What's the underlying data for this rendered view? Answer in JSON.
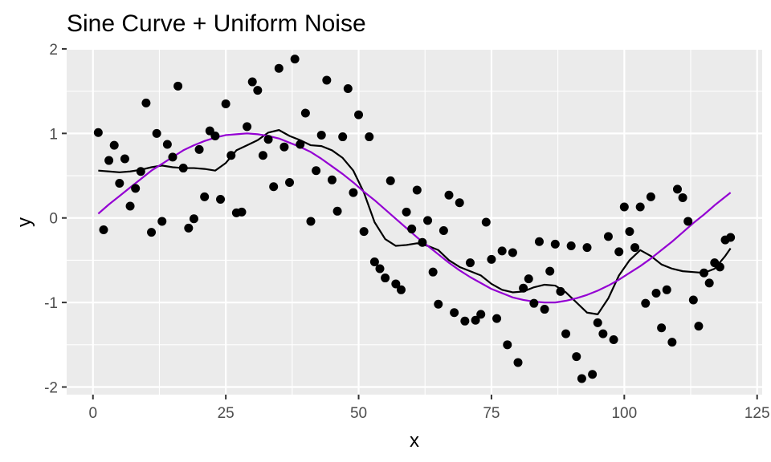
{
  "chart_data": {
    "type": "scatter",
    "title": "Sine Curve + Uniform Noise",
    "xlabel": "x",
    "ylabel": "y",
    "xlim": [
      -4.95,
      125.95
    ],
    "ylim": [
      -2.09,
      1.99
    ],
    "x_ticks": [
      0,
      25,
      50,
      75,
      100,
      125
    ],
    "x_tick_labels": [
      "0",
      "25",
      "50",
      "75",
      "100",
      "125"
    ],
    "y_ticks": [
      -2,
      -1,
      0,
      1,
      2
    ],
    "y_tick_labels": [
      "-2",
      "-1",
      "0",
      "1",
      "2"
    ],
    "grid": true,
    "legend": "none",
    "colors": {
      "panel_background": "#ebebeb",
      "grid": "#ffffff",
      "points": "#000000",
      "smooth_line": "#000000",
      "sine_line": "#9400d3"
    },
    "points": {
      "x": [
        1,
        2,
        3,
        4,
        5,
        6,
        7,
        8,
        9,
        10,
        11,
        12,
        13,
        14,
        15,
        16,
        17,
        18,
        19,
        20,
        21,
        22,
        23,
        24,
        25,
        26,
        27,
        28,
        29,
        30,
        31,
        32,
        33,
        34,
        35,
        36,
        37,
        38,
        39,
        40,
        41,
        42,
        43,
        44,
        45,
        46,
        47,
        48,
        49,
        50,
        51,
        52,
        53,
        54,
        55,
        56,
        57,
        58,
        59,
        60,
        61,
        62,
        63,
        64,
        65,
        66,
        67,
        68,
        69,
        70,
        71,
        72,
        73,
        74,
        75,
        76,
        77,
        78,
        79,
        80,
        81,
        82,
        83,
        84,
        85,
        86,
        87,
        88,
        89,
        90,
        91,
        92,
        93,
        94,
        95,
        96,
        97,
        98,
        99,
        100,
        101,
        102,
        103,
        104,
        105,
        106,
        107,
        108,
        109,
        110,
        111,
        112,
        113,
        114,
        115,
        116,
        117,
        118,
        119,
        120
      ],
      "y": [
        1.01,
        -0.14,
        0.68,
        0.86,
        0.41,
        0.7,
        0.14,
        0.35,
        0.55,
        1.36,
        -0.17,
        1.0,
        -0.04,
        0.87,
        0.72,
        1.56,
        0.59,
        -0.12,
        -0.01,
        0.81,
        0.25,
        1.03,
        0.97,
        0.22,
        1.35,
        0.74,
        0.06,
        0.07,
        1.08,
        1.61,
        1.51,
        0.74,
        0.93,
        0.37,
        1.77,
        0.84,
        0.42,
        1.88,
        0.87,
        1.24,
        -0.04,
        0.56,
        0.98,
        1.63,
        0.45,
        0.08,
        0.96,
        1.53,
        0.3,
        1.22,
        -0.16,
        0.96,
        -0.52,
        -0.6,
        -0.71,
        0.44,
        -0.78,
        -0.85,
        0.07,
        -0.13,
        0.33,
        -0.29,
        -0.03,
        -0.64,
        -1.02,
        -0.15,
        0.27,
        -1.12,
        0.18,
        -1.22,
        -0.53,
        -1.21,
        -1.14,
        -0.05,
        -0.49,
        -1.19,
        -0.39,
        -1.5,
        -0.41,
        -1.71,
        -0.83,
        -0.72,
        -1.01,
        -0.28,
        -1.08,
        -0.63,
        -0.31,
        -0.87,
        -1.37,
        -0.33,
        -1.64,
        -1.9,
        -0.35,
        -1.85,
        -1.24,
        -1.37,
        -0.22,
        -1.44,
        -0.4,
        0.13,
        -0.16,
        -0.35,
        0.13,
        -1.01,
        0.25,
        -0.89,
        -1.3,
        -0.85,
        -1.47,
        0.34,
        0.24,
        -0.04,
        -0.97,
        -1.28,
        -0.65,
        -0.77,
        -0.53,
        -0.58,
        -0.26,
        -0.23
      ]
    },
    "series": [
      {
        "type": "line",
        "x": [
          1,
          3,
          5,
          7,
          9,
          11,
          13,
          15,
          17,
          19,
          21,
          23,
          25,
          27,
          29,
          31,
          33,
          35,
          37,
          39,
          41,
          43,
          45,
          47,
          49,
          51,
          53,
          55,
          57,
          59,
          61,
          63,
          65,
          67,
          69,
          71,
          73,
          75,
          77,
          79,
          81,
          83,
          85,
          87,
          89,
          91,
          93,
          95,
          97,
          99,
          101,
          103,
          105,
          107,
          109,
          111,
          113,
          115,
          117,
          119,
          120
        ],
        "y": [
          0.56,
          0.55,
          0.54,
          0.55,
          0.57,
          0.6,
          0.62,
          0.6,
          0.59,
          0.59,
          0.58,
          0.56,
          0.65,
          0.8,
          0.86,
          0.92,
          1.01,
          1.04,
          0.97,
          0.92,
          0.86,
          0.85,
          0.8,
          0.71,
          0.56,
          0.3,
          -0.05,
          -0.25,
          -0.33,
          -0.32,
          -0.3,
          -0.33,
          -0.38,
          -0.5,
          -0.58,
          -0.63,
          -0.68,
          -0.78,
          -0.85,
          -0.88,
          -0.87,
          -0.82,
          -0.79,
          -0.8,
          -0.88,
          -1.0,
          -1.12,
          -1.14,
          -0.95,
          -0.68,
          -0.5,
          -0.38,
          -0.45,
          -0.55,
          -0.6,
          -0.63,
          -0.64,
          -0.65,
          -0.6,
          -0.45,
          -0.36
        ]
      },
      {
        "type": "line",
        "x": [
          1,
          3,
          5,
          7,
          9,
          11,
          13,
          15,
          17,
          19,
          21,
          23,
          25,
          27,
          29,
          31,
          33,
          35,
          37,
          39,
          41,
          43,
          45,
          47,
          49,
          51,
          53,
          55,
          57,
          59,
          61,
          63,
          65,
          67,
          69,
          71,
          73,
          75,
          77,
          79,
          81,
          83,
          85,
          87,
          89,
          91,
          93,
          95,
          97,
          99,
          101,
          103,
          105,
          107,
          109,
          111,
          113,
          115,
          117,
          119,
          120
        ],
        "y": [
          0.05,
          0.16,
          0.26,
          0.36,
          0.46,
          0.56,
          0.64,
          0.72,
          0.8,
          0.86,
          0.91,
          0.95,
          0.98,
          0.99,
          1.0,
          0.99,
          0.97,
          0.94,
          0.89,
          0.84,
          0.78,
          0.7,
          0.61,
          0.52,
          0.42,
          0.31,
          0.21,
          0.1,
          -0.01,
          -0.12,
          -0.23,
          -0.33,
          -0.43,
          -0.53,
          -0.62,
          -0.7,
          -0.77,
          -0.84,
          -0.89,
          -0.94,
          -0.97,
          -0.99,
          -1.0,
          -1.0,
          -0.98,
          -0.95,
          -0.91,
          -0.86,
          -0.8,
          -0.73,
          -0.65,
          -0.57,
          -0.48,
          -0.38,
          -0.28,
          -0.17,
          -0.06,
          0.04,
          0.15,
          0.25,
          0.3
        ]
      }
    ]
  }
}
